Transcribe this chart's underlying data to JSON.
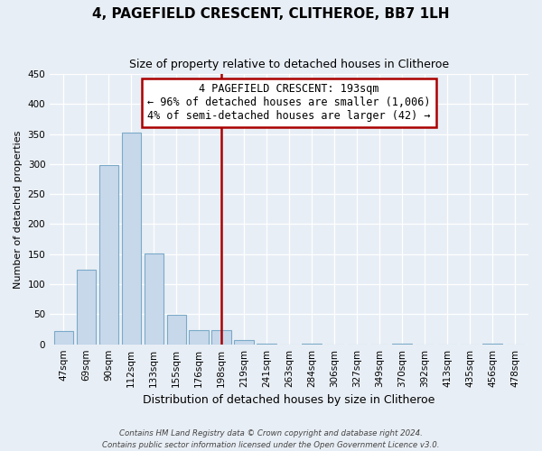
{
  "title": "4, PAGEFIELD CRESCENT, CLITHEROE, BB7 1LH",
  "subtitle": "Size of property relative to detached houses in Clitheroe",
  "xlabel": "Distribution of detached houses by size in Clitheroe",
  "ylabel": "Number of detached properties",
  "bar_labels": [
    "47sqm",
    "69sqm",
    "90sqm",
    "112sqm",
    "133sqm",
    "155sqm",
    "176sqm",
    "198sqm",
    "219sqm",
    "241sqm",
    "263sqm",
    "284sqm",
    "306sqm",
    "327sqm",
    "349sqm",
    "370sqm",
    "392sqm",
    "413sqm",
    "435sqm",
    "456sqm",
    "478sqm"
  ],
  "bar_heights": [
    22,
    124,
    298,
    353,
    151,
    49,
    24,
    24,
    7,
    1,
    0,
    1,
    0,
    0,
    0,
    1,
    0,
    0,
    0,
    1,
    0
  ],
  "bar_color": "#c8d8eb",
  "bar_edge_color": "#7aaac8",
  "vline_x": 7,
  "vline_color": "#aa0000",
  "annotation_title": "4 PAGEFIELD CRESCENT: 193sqm",
  "annotation_line1": "← 96% of detached houses are smaller (1,006)",
  "annotation_line2": "4% of semi-detached houses are larger (42) →",
  "annotation_box_facecolor": "#ffffff",
  "annotation_box_edgecolor": "#aa0000",
  "ylim": [
    0,
    450
  ],
  "yticks": [
    0,
    50,
    100,
    150,
    200,
    250,
    300,
    350,
    400,
    450
  ],
  "footer1": "Contains HM Land Registry data © Crown copyright and database right 2024.",
  "footer2": "Contains public sector information licensed under the Open Government Licence v3.0.",
  "bg_color": "#e8eef5",
  "grid_color": "#ffffff",
  "title_fontsize": 11,
  "subtitle_fontsize": 9,
  "ylabel_fontsize": 8,
  "xlabel_fontsize": 9,
  "tick_fontsize": 7.5,
  "annotation_fontsize": 8.5
}
